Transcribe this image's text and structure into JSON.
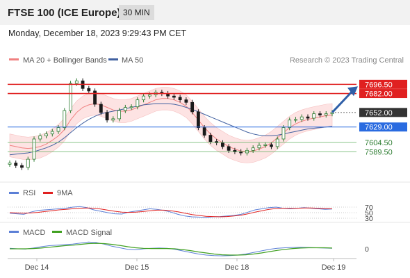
{
  "header": {
    "title": "FTSE 100 (ICE Europe)",
    "interval_badge": "30 MIN",
    "timestamp": "Monday, December 18, 2023 9:29:43 PM CET"
  },
  "legend": {
    "ma20_label": "MA 20 + Bollinger Bands",
    "ma50_label": "MA 50",
    "credit": "Research © 2023 Trading Central",
    "ma20_color": "#f08080",
    "ma50_color": "#4060a0"
  },
  "colors": {
    "resistance": "#e02020",
    "current": "#333333",
    "pivot": "#2a6be0",
    "support": "#60b060",
    "bands": "#fde3e3",
    "up_candle": "#2e7d32",
    "down_candle": "#1a1a1a",
    "arrow": "#2f5fa8"
  },
  "chart_data": [
    {
      "type": "candlestick",
      "title": "FTSE 100 (ICE Europe)",
      "interval": "30 MIN",
      "x_labels": [
        "Dec 14",
        "Dec 15",
        "Dec 18",
        "Dec 19"
      ],
      "ylim": [
        7555,
        7720
      ],
      "levels": [
        {
          "value": 7696.5,
          "label": "7696.50",
          "kind": "resistance"
        },
        {
          "value": 7682.0,
          "label": "7682.00",
          "kind": "resistance"
        },
        {
          "value": 7652.0,
          "label": "7652.00",
          "kind": "current"
        },
        {
          "value": 7629.0,
          "label": "7629.00",
          "kind": "pivot"
        },
        {
          "value": 7604.5,
          "label": "7604.50",
          "kind": "support"
        },
        {
          "value": 7589.5,
          "label": "7589.50",
          "kind": "support"
        }
      ],
      "close": [
        7572,
        7568,
        7565,
        7578,
        7610,
        7615,
        7618,
        7622,
        7628,
        7655,
        7698,
        7702,
        7690,
        7686,
        7665,
        7652,
        7640,
        7642,
        7655,
        7660,
        7661,
        7672,
        7678,
        7680,
        7684,
        7682,
        7678,
        7676,
        7672,
        7668,
        7653,
        7628,
        7616,
        7606,
        7604,
        7598,
        7592,
        7590,
        7588,
        7592,
        7596,
        7600,
        7601,
        7598,
        7610,
        7628,
        7640,
        7641,
        7645,
        7643,
        7650,
        7648,
        7650,
        7652
      ],
      "ma20": [
        7600,
        7598,
        7596,
        7595,
        7596,
        7598,
        7602,
        7608,
        7615,
        7625,
        7640,
        7652,
        7660,
        7664,
        7666,
        7664,
        7660,
        7656,
        7654,
        7654,
        7656,
        7660,
        7664,
        7668,
        7672,
        7674,
        7674,
        7672,
        7668,
        7662,
        7652,
        7640,
        7628,
        7618,
        7610,
        7604,
        7598,
        7594,
        7591,
        7590,
        7591,
        7594,
        7598,
        7604,
        7612,
        7620,
        7628,
        7634,
        7638,
        7641,
        7643,
        7645,
        7647,
        7648
      ],
      "ma50": [
        7585,
        7586,
        7587,
        7588,
        7590,
        7593,
        7596,
        7600,
        7605,
        7612,
        7620,
        7628,
        7635,
        7641,
        7646,
        7650,
        7652,
        7654,
        7656,
        7658,
        7660,
        7662,
        7664,
        7665,
        7666,
        7666,
        7666,
        7665,
        7663,
        7660,
        7657,
        7653,
        7649,
        7645,
        7641,
        7637,
        7633,
        7629,
        7625,
        7621,
        7618,
        7616,
        7615,
        7615,
        7616,
        7618,
        7620,
        7622,
        7624,
        7626,
        7627,
        7628,
        7629,
        7630
      ],
      "arrow": {
        "from": 7652,
        "to": 7690
      }
    },
    {
      "type": "line",
      "title": "RSI",
      "series": [
        {
          "name": "RSI",
          "values": [
            48,
            46,
            44,
            52,
            58,
            60,
            62,
            64,
            66,
            70,
            72,
            68,
            60,
            55,
            50,
            46,
            45,
            52,
            56,
            60,
            64,
            62,
            58,
            52,
            44,
            38,
            35,
            34,
            33,
            35,
            36,
            38,
            40,
            44,
            52,
            60,
            64,
            68,
            70,
            66,
            64,
            66,
            68,
            66,
            64,
            62,
            63
          ]
        },
        {
          "name": "9MA",
          "values": [
            50,
            49,
            48,
            49,
            51,
            54,
            57,
            60,
            62,
            64,
            66,
            67,
            66,
            63,
            59,
            55,
            52,
            51,
            52,
            54,
            57,
            59,
            59,
            57,
            53,
            48,
            43,
            40,
            37,
            36,
            35,
            36,
            38,
            41,
            46,
            52,
            57,
            62,
            65,
            66,
            66,
            66,
            67,
            67,
            66,
            65,
            64
          ]
        }
      ],
      "ticks": [
        "70",
        "50",
        "30"
      ],
      "ylim": [
        20,
        85
      ]
    },
    {
      "type": "line",
      "title": "MACD",
      "series": [
        {
          "name": "MACD",
          "values": [
            2,
            0,
            -1,
            3,
            8,
            12,
            14,
            16,
            18,
            22,
            26,
            24,
            18,
            10,
            4,
            -2,
            -4,
            0,
            2,
            3,
            2,
            -2,
            -8,
            -14,
            -20,
            -24,
            -26,
            -27,
            -26,
            -24,
            -20,
            -14,
            -8,
            -2,
            2,
            4,
            5,
            6,
            5,
            4,
            3,
            2
          ]
        },
        {
          "name": "MACD Signal",
          "values": [
            0,
            0,
            0,
            1,
            3,
            6,
            9,
            12,
            14,
            17,
            20,
            21,
            20,
            17,
            13,
            8,
            4,
            2,
            1,
            1,
            1,
            0,
            -3,
            -7,
            -12,
            -16,
            -20,
            -23,
            -24,
            -24,
            -23,
            -20,
            -16,
            -11,
            -6,
            -2,
            1,
            3,
            4,
            4,
            4,
            3
          ]
        }
      ],
      "ticks": [
        "0"
      ],
      "ylim": [
        -32,
        32
      ]
    }
  ],
  "panels": {
    "rsi_label": "RSI",
    "rsi_ma_label": "9MA",
    "macd_label": "MACD",
    "macd_signal_label": "MACD Signal"
  }
}
